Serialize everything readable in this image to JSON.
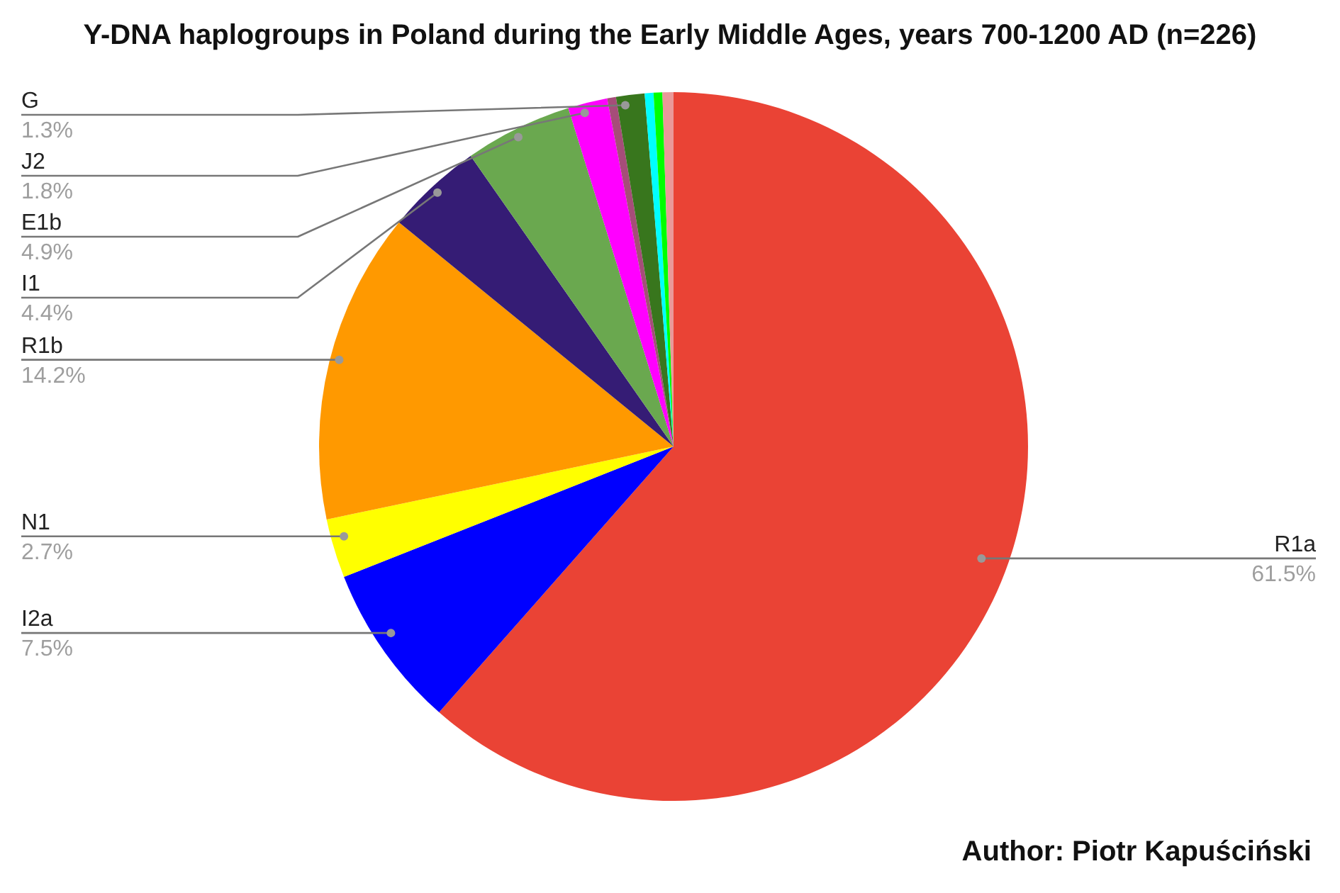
{
  "chart_data": {
    "type": "pie",
    "title": "Y-DNA haplogroups in Poland during the Early Middle Ages, years 700-1200 AD (n=226)",
    "categories": [
      "R1a",
      "I2a",
      "N1",
      "R1b",
      "I1",
      "E1b",
      "J2",
      null,
      "G",
      null,
      null,
      null
    ],
    "values": [
      61.5,
      7.5,
      2.7,
      14.2,
      4.4,
      4.9,
      1.8,
      0.4,
      1.3,
      0.4,
      0.4,
      0.5
    ],
    "value_labels": [
      "61.5%",
      "7.5%",
      "2.7%",
      "14.2%",
      "4.4%",
      "4.9%",
      "1.8%",
      null,
      "1.3%",
      null,
      null,
      null
    ],
    "colors": [
      "#ea4335",
      "#0000ff",
      "#ffff00",
      "#ff9900",
      "#351c75",
      "#6aa84f",
      "#ff00ff",
      "#a64d79",
      "#38761d",
      "#00ffff",
      "#00ff00",
      "#ea9999"
    ],
    "annotations": [
      "Author: Piotr Kapuściński"
    ]
  }
}
